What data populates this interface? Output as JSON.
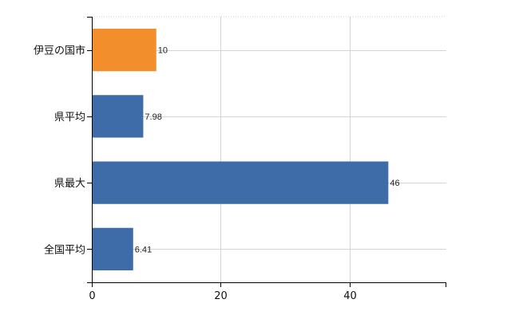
{
  "chart_data": {
    "type": "bar",
    "orientation": "horizontal",
    "categories": [
      "伊豆の国市",
      "県平均",
      "県最大",
      "全国平均"
    ],
    "values": [
      10,
      7.98,
      46,
      6.41
    ],
    "data_labels": [
      "10",
      "7.98",
      "46",
      "6.41"
    ],
    "highlight_index": 0,
    "colors": {
      "highlight": "#F28E2B",
      "default": "#3D6CA8"
    },
    "xlim": [
      0,
      55
    ],
    "x_ticks": [
      0,
      20,
      40
    ],
    "grid": true,
    "title": "",
    "xlabel": "",
    "ylabel": ""
  }
}
